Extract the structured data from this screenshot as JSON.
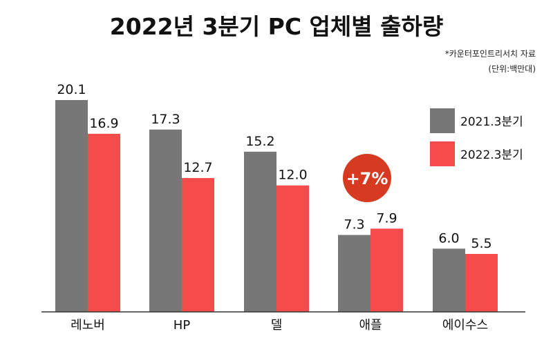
{
  "chart_data": {
    "type": "bar",
    "title": "2022년 3분기 PC 업체별 출하량",
    "source_note": "*카운터포인트리서치 자료",
    "unit_note": "(단위:백만대)",
    "categories": [
      "레노버",
      "HP",
      "델",
      "애플",
      "에이수스"
    ],
    "series": [
      {
        "name": "2021.3분기",
        "color": "#777777",
        "values": [
          20.1,
          17.3,
          15.2,
          7.3,
          6.0
        ]
      },
      {
        "name": "2022.3분기",
        "color": "#f54b4b",
        "values": [
          16.9,
          12.7,
          12.0,
          7.9,
          5.5
        ]
      }
    ],
    "value_labels": [
      [
        "20.1",
        "17.3",
        "15.2",
        "7.3",
        "6.0"
      ],
      [
        "16.9",
        "12.7",
        "12.0",
        "7.9",
        "5.5"
      ]
    ],
    "ylim": [
      0,
      20.1
    ],
    "grid": false,
    "legend_position": "right",
    "annotation": {
      "text": "+7%",
      "category": "애플",
      "color": "#d63a20"
    }
  }
}
